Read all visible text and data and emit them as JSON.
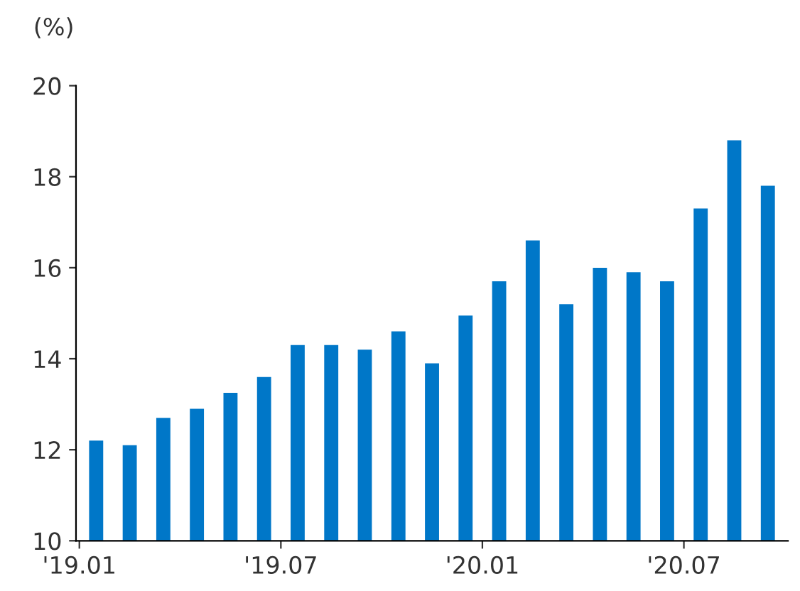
{
  "chart_data": {
    "type": "bar",
    "ylabel": "(%)",
    "categories": [
      "'19.01",
      null,
      null,
      null,
      null,
      null,
      "'19.07",
      null,
      null,
      null,
      null,
      null,
      "'20.01",
      null,
      null,
      null,
      null,
      null,
      "'20.07",
      null,
      null
    ],
    "values": [
      12.2,
      12.1,
      12.7,
      12.9,
      13.25,
      13.6,
      14.3,
      14.3,
      14.2,
      14.6,
      13.9,
      14.95,
      15.7,
      16.6,
      15.2,
      16.0,
      15.9,
      15.7,
      17.3,
      18.8,
      17.8
    ],
    "color": "#0077c8",
    "ylim": [
      10,
      20
    ],
    "yticks": [
      10,
      12,
      14,
      16,
      18,
      20
    ],
    "grid": false,
    "legend": false
  }
}
